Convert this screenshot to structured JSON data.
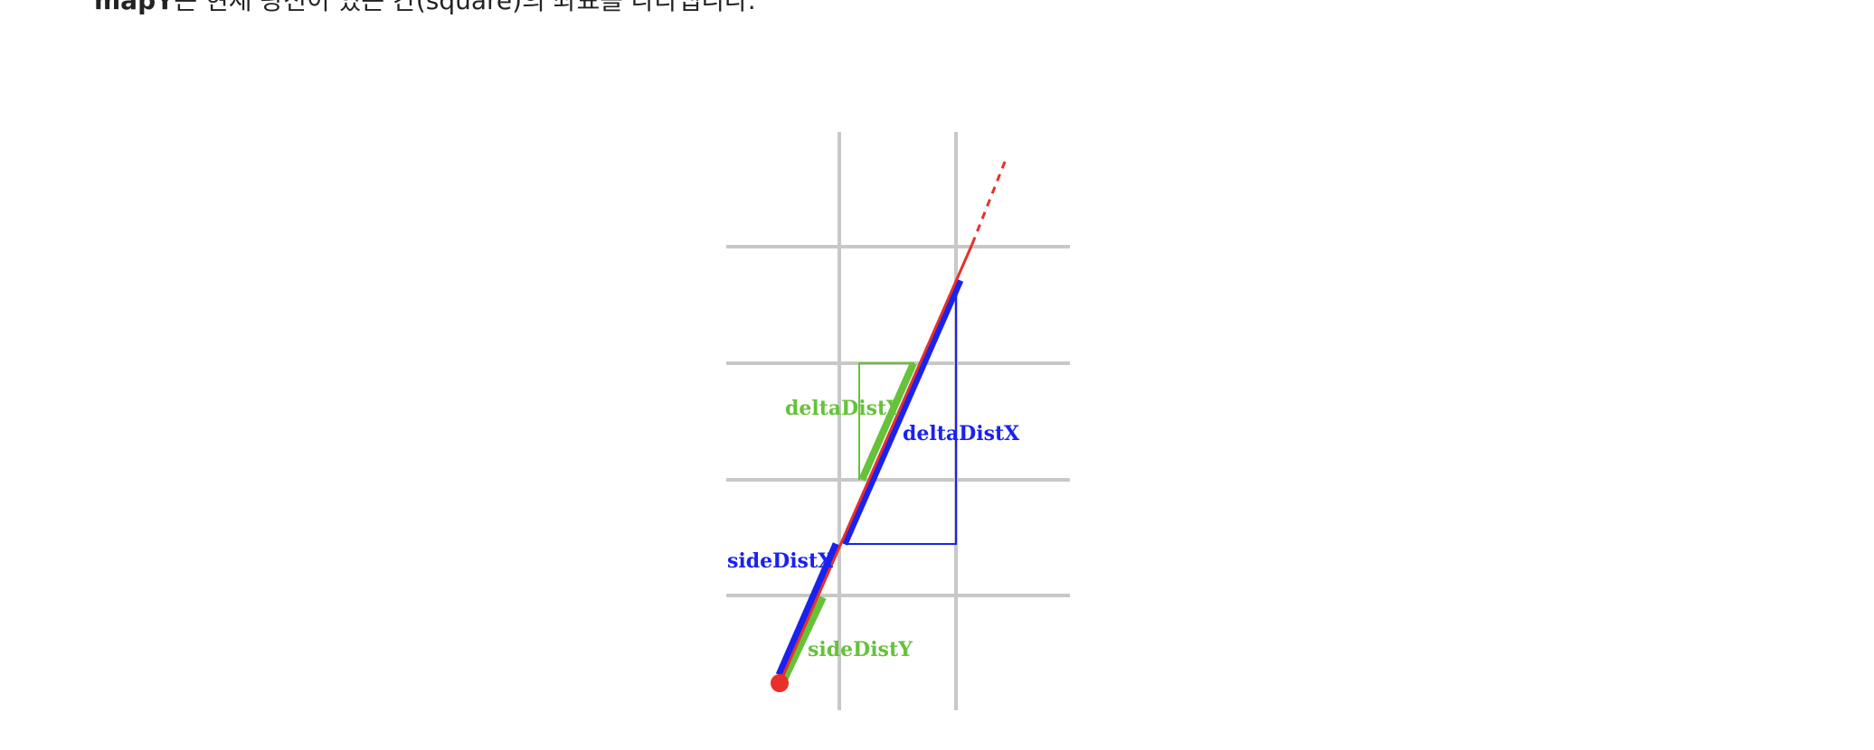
{
  "intro": {
    "bold_term": "mapY",
    "text": "는 현재 광선이 있는 칸(square)의 좌표를 나타냅니다."
  },
  "labels": {
    "delta_dist_y": "deltaDistY",
    "delta_dist_x": "deltaDistX",
    "side_dist_x": "sideDistX",
    "side_dist_y": "sideDistY"
  },
  "colors": {
    "grid": "#c8c8c8",
    "ray": "#e8302a",
    "x_dist": "#1a22ee",
    "y_dist": "#66c23a",
    "text": "#222222"
  }
}
